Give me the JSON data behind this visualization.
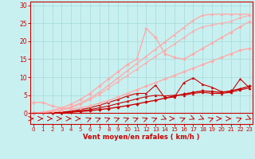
{
  "title": "",
  "xlabel": "Vent moyen/en rafales ( km/h )",
  "bg_color": "#c8f0f0",
  "grid_color": "#aadddd",
  "x_values": [
    0,
    1,
    2,
    3,
    4,
    5,
    6,
    7,
    8,
    9,
    10,
    11,
    12,
    13,
    14,
    15,
    16,
    17,
    18,
    19,
    20,
    21,
    22,
    23
  ],
  "lines": [
    {
      "comment": "dark red smooth rising - diamond markers",
      "y": [
        0.0,
        0.05,
        0.1,
        0.2,
        0.3,
        0.5,
        0.7,
        1.0,
        1.3,
        1.7,
        2.1,
        2.6,
        3.1,
        3.6,
        4.2,
        4.8,
        5.3,
        5.8,
        6.2,
        6.0,
        5.8,
        6.2,
        6.8,
        7.5
      ],
      "color": "#cc0000",
      "marker": "D",
      "markersize": 2.0,
      "linewidth": 1.0,
      "alpha": 1.0
    },
    {
      "comment": "dark red triangle - gradually rising then plateau ~5",
      "y": [
        0.0,
        0.05,
        0.1,
        0.2,
        0.4,
        0.7,
        1.0,
        1.5,
        2.0,
        2.7,
        3.3,
        4.0,
        4.6,
        5.0,
        4.8,
        5.0,
        5.0,
        5.5,
        5.8,
        5.5,
        5.5,
        5.8,
        6.5,
        7.0
      ],
      "color": "#cc0000",
      "marker": "^",
      "markersize": 2.0,
      "linewidth": 0.8,
      "alpha": 1.0
    },
    {
      "comment": "dark red triangle spiky - rises with spikes at 13,17,18,22",
      "y": [
        0.0,
        0.05,
        0.1,
        0.3,
        0.6,
        1.0,
        1.5,
        2.2,
        3.0,
        3.8,
        4.8,
        5.5,
        5.5,
        7.8,
        4.2,
        4.5,
        8.5,
        9.8,
        8.0,
        7.2,
        6.0,
        5.8,
        9.5,
        7.0
      ],
      "color": "#cc0000",
      "marker": "^",
      "markersize": 2.0,
      "linewidth": 0.8,
      "alpha": 1.0
    },
    {
      "comment": "pink line starting at ~3, dips then rises smoothly",
      "y": [
        3.0,
        3.0,
        2.0,
        1.5,
        1.2,
        1.5,
        2.0,
        2.8,
        3.5,
        4.5,
        5.5,
        6.5,
        7.5,
        8.5,
        9.5,
        10.5,
        11.5,
        12.5,
        13.5,
        14.5,
        15.5,
        16.5,
        17.5,
        18.0
      ],
      "color": "#ffaaaa",
      "marker": "D",
      "markersize": 2.0,
      "linewidth": 1.0,
      "alpha": 1.0
    },
    {
      "comment": "pink spiky - rises with big spike at 12-13",
      "y": [
        0.0,
        0.3,
        0.8,
        1.5,
        2.5,
        3.8,
        5.5,
        7.5,
        9.5,
        11.5,
        13.5,
        15.0,
        23.5,
        21.0,
        16.5,
        15.5,
        15.0,
        16.5,
        18.0,
        19.5,
        21.0,
        22.5,
        24.0,
        25.5
      ],
      "color": "#ffaaaa",
      "marker": "D",
      "markersize": 2.0,
      "linewidth": 1.0,
      "alpha": 1.0
    },
    {
      "comment": "pink straight rising to ~27.5",
      "y": [
        0.0,
        0.2,
        0.5,
        1.0,
        1.8,
        2.8,
        4.2,
        5.8,
        7.8,
        9.8,
        11.8,
        13.8,
        15.8,
        17.8,
        19.8,
        21.8,
        23.8,
        25.8,
        27.2,
        27.5,
        27.5,
        27.5,
        27.5,
        27.5
      ],
      "color": "#ffaaaa",
      "marker": "^",
      "markersize": 2.0,
      "linewidth": 1.0,
      "alpha": 1.0
    },
    {
      "comment": "pink second straight line to ~27",
      "y": [
        0.0,
        0.15,
        0.4,
        0.8,
        1.5,
        2.5,
        3.8,
        5.2,
        7.0,
        8.8,
        10.5,
        12.2,
        14.0,
        15.8,
        17.5,
        19.2,
        21.0,
        22.8,
        24.0,
        24.5,
        25.0,
        25.5,
        26.5,
        27.2
      ],
      "color": "#ffaaaa",
      "marker": "^",
      "markersize": 2.0,
      "linewidth": 0.8,
      "alpha": 1.0
    }
  ],
  "xlim": [
    -0.3,
    23.3
  ],
  "ylim": [
    -3.0,
    31
  ],
  "yticks": [
    0,
    5,
    10,
    15,
    20,
    25,
    30
  ],
  "xticks": [
    0,
    1,
    2,
    3,
    4,
    5,
    6,
    7,
    8,
    9,
    10,
    11,
    12,
    13,
    14,
    15,
    16,
    17,
    18,
    19,
    20,
    21,
    22,
    23
  ],
  "xlabel_color": "#cc0000",
  "tick_color": "#cc0000",
  "spine_color": "#cc0000",
  "arrow_color": "#cc0000",
  "arrow_angles": [
    0,
    0,
    0,
    0,
    0,
    0,
    45,
    45,
    45,
    45,
    45,
    45,
    45,
    45,
    -45,
    0,
    45,
    -45,
    -45,
    45,
    0,
    0,
    45,
    -45
  ]
}
